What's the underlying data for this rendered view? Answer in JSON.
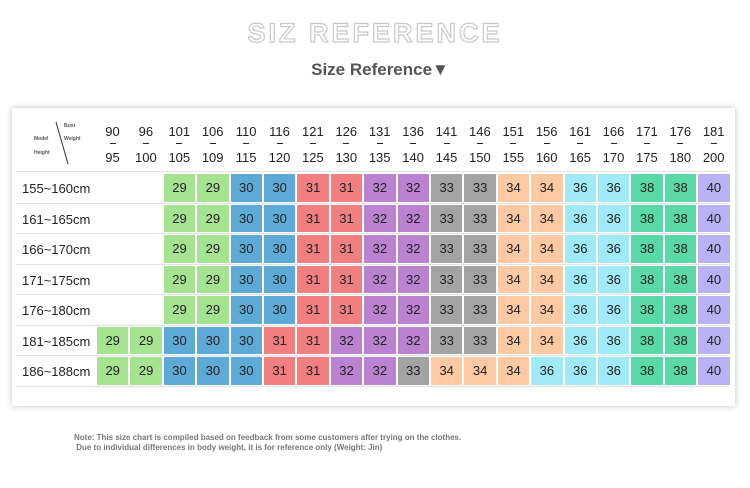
{
  "header": {
    "title": "SIZ REFERENCE",
    "subtitle": "Size Reference▼"
  },
  "table": {
    "corner": {
      "top": "Bust",
      "right": "Weight",
      "left": "Model",
      "bottom": "Height"
    },
    "columns": [
      {
        "from": 90,
        "to": 95
      },
      {
        "from": 96,
        "to": 100
      },
      {
        "from": 101,
        "to": 105
      },
      {
        "from": 106,
        "to": 109
      },
      {
        "from": 110,
        "to": 115
      },
      {
        "from": 116,
        "to": 120
      },
      {
        "from": 121,
        "to": 125
      },
      {
        "from": 126,
        "to": 130
      },
      {
        "from": 131,
        "to": 135
      },
      {
        "from": 136,
        "to": 140
      },
      {
        "from": 141,
        "to": 145
      },
      {
        "from": 146,
        "to": 150
      },
      {
        "from": 151,
        "to": 155
      },
      {
        "from": 156,
        "to": 160
      },
      {
        "from": 161,
        "to": 165
      },
      {
        "from": 166,
        "to": 170
      },
      {
        "from": 171,
        "to": 175
      },
      {
        "from": 176,
        "to": 180
      },
      {
        "from": 181,
        "to": 200
      }
    ],
    "rows": [
      {
        "label": "155~160cm",
        "cells": [
          null,
          null,
          29,
          29,
          30,
          30,
          31,
          31,
          32,
          32,
          33,
          33,
          34,
          34,
          36,
          36,
          38,
          38,
          40
        ]
      },
      {
        "label": "161~165cm",
        "cells": [
          null,
          null,
          29,
          29,
          30,
          30,
          31,
          31,
          32,
          32,
          33,
          33,
          34,
          34,
          36,
          36,
          38,
          38,
          40
        ]
      },
      {
        "label": "166~170cm",
        "cells": [
          null,
          null,
          29,
          29,
          30,
          30,
          31,
          31,
          32,
          32,
          33,
          33,
          34,
          34,
          36,
          36,
          38,
          38,
          40
        ]
      },
      {
        "label": "171~175cm",
        "cells": [
          null,
          null,
          29,
          29,
          30,
          30,
          31,
          31,
          32,
          32,
          33,
          33,
          34,
          34,
          36,
          36,
          38,
          38,
          40
        ]
      },
      {
        "label": "176~180cm",
        "cells": [
          null,
          null,
          29,
          29,
          30,
          30,
          31,
          31,
          32,
          32,
          33,
          33,
          34,
          34,
          36,
          36,
          38,
          38,
          40
        ]
      },
      {
        "label": "181~185cm",
        "cells": [
          29,
          29,
          30,
          30,
          30,
          31,
          31,
          32,
          32,
          32,
          33,
          33,
          34,
          34,
          36,
          36,
          38,
          38,
          40
        ]
      },
      {
        "label": "186~188cm",
        "cells": [
          29,
          29,
          30,
          30,
          30,
          31,
          31,
          32,
          32,
          33,
          34,
          34,
          34,
          36,
          36,
          36,
          38,
          38,
          40
        ]
      }
    ],
    "cell_colors": {
      "29": "#a6e391",
      "30": "#5eaad6",
      "31": "#f27f7f",
      "32": "#bb82d2",
      "33": "#a3a3a3",
      "34": "#fcc9a2",
      "36": "#a0e9f6",
      "38": "#5ad8a7",
      "40": "#b8b1f2"
    }
  },
  "note": {
    "line1": "Note: This size chart is compiled based on feedback from some customers after trying on the clothes.",
    "line2": " Due to individual differences in body weight, it is for reference only (Weight: Jin)"
  }
}
